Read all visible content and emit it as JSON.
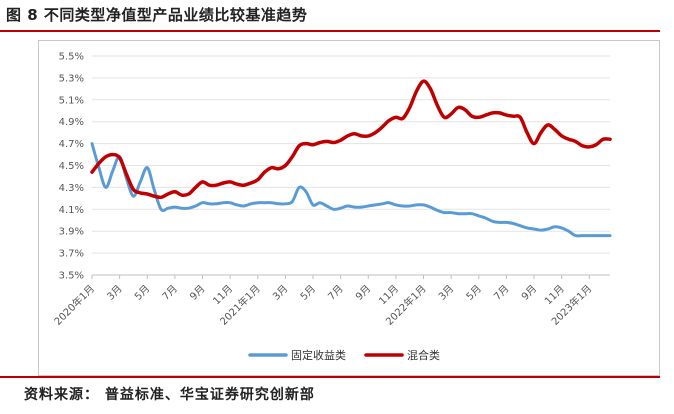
{
  "figure": {
    "title": "图 8 不同类型净值型产品业绩比较基准趋势",
    "source": "资料来源： 普益标准、华宝证券研究创新部"
  },
  "colors": {
    "fixed_income": "#5b9bd5",
    "mixed": "#c00000",
    "rule": "#c00000"
  },
  "chart_data": {
    "type": "line",
    "title": "",
    "xlabel": "",
    "ylabel": "",
    "ylim": [
      3.5,
      5.5
    ],
    "y_ticks": [
      "5.5%",
      "5.3%",
      "5.1%",
      "4.9%",
      "4.7%",
      "4.5%",
      "4.3%",
      "4.1%",
      "3.9%",
      "3.7%",
      "3.5%"
    ],
    "x_tick_labels": [
      "2020年1月",
      "3月",
      "5月",
      "7月",
      "9月",
      "11月",
      "2021年1月",
      "3月",
      "5月",
      "7月",
      "9月",
      "11月",
      "2022年1月",
      "3月",
      "5月",
      "7月",
      "9月",
      "11月",
      "2023年1月"
    ],
    "x_tick_positions": [
      0,
      2,
      4,
      6,
      8,
      10,
      12,
      14,
      16,
      18,
      20,
      22,
      24,
      26,
      28,
      30,
      32,
      34,
      36
    ],
    "legend_position": "bottom",
    "series": [
      {
        "name": "固定收益类",
        "x": [
          0,
          0.5,
          1,
          1.5,
          2,
          2.5,
          3,
          3.5,
          4,
          4.5,
          5,
          5.5,
          6,
          6.5,
          7,
          7.5,
          8,
          8.5,
          9,
          9.5,
          10,
          10.5,
          11,
          11.5,
          12,
          12.5,
          13,
          13.5,
          14,
          14.5,
          15,
          15.5,
          16,
          16.5,
          17,
          17.5,
          18,
          18.5,
          19,
          19.5,
          20,
          20.5,
          21,
          21.5,
          22,
          22.5,
          23,
          23.5,
          24,
          24.5,
          25,
          25.5,
          26,
          26.5,
          27,
          27.5,
          28,
          28.5,
          29,
          29.5,
          30,
          30.5,
          31,
          31.5,
          32,
          32.5,
          33,
          33.5,
          34,
          34.5,
          35,
          35.5,
          36,
          36.5,
          37,
          37.5
        ],
        "values": [
          4.7,
          4.48,
          4.3,
          4.45,
          4.58,
          4.38,
          4.22,
          4.35,
          4.48,
          4.28,
          4.1,
          4.11,
          4.12,
          4.11,
          4.11,
          4.13,
          4.16,
          4.15,
          4.15,
          4.16,
          4.16,
          4.14,
          4.13,
          4.15,
          4.16,
          4.16,
          4.16,
          4.15,
          4.15,
          4.17,
          4.3,
          4.26,
          4.14,
          4.16,
          4.13,
          4.1,
          4.11,
          4.13,
          4.12,
          4.12,
          4.13,
          4.14,
          4.15,
          4.16,
          4.14,
          4.13,
          4.13,
          4.14,
          4.14,
          4.12,
          4.09,
          4.07,
          4.07,
          4.06,
          4.06,
          4.06,
          4.04,
          4.02,
          3.99,
          3.98,
          3.98,
          3.97,
          3.95,
          3.93,
          3.92,
          3.91,
          3.92,
          3.94,
          3.93,
          3.9,
          3.86,
          3.86,
          3.86,
          3.86,
          3.86,
          3.86
        ]
      },
      {
        "name": "混合类",
        "x": [
          0,
          0.5,
          1,
          1.5,
          2,
          2.5,
          3,
          3.5,
          4,
          4.5,
          5,
          5.5,
          6,
          6.5,
          7,
          7.5,
          8,
          8.5,
          9,
          9.5,
          10,
          10.5,
          11,
          11.5,
          12,
          12.5,
          13,
          13.5,
          14,
          14.5,
          15,
          15.5,
          16,
          16.5,
          17,
          17.5,
          18,
          18.5,
          19,
          19.5,
          20,
          20.5,
          21,
          21.5,
          22,
          22.5,
          23,
          23.5,
          24,
          24.5,
          25,
          25.5,
          26,
          26.5,
          27,
          27.5,
          28,
          28.5,
          29,
          29.5,
          30,
          30.5,
          31,
          31.5,
          32,
          32.5,
          33,
          33.5,
          34,
          34.5,
          35,
          35.5,
          36,
          36.5,
          37,
          37.5
        ],
        "values": [
          4.44,
          4.52,
          4.58,
          4.6,
          4.57,
          4.42,
          4.28,
          4.25,
          4.24,
          4.22,
          4.21,
          4.24,
          4.26,
          4.23,
          4.24,
          4.3,
          4.35,
          4.32,
          4.32,
          4.34,
          4.35,
          4.33,
          4.32,
          4.34,
          4.37,
          4.44,
          4.48,
          4.47,
          4.5,
          4.58,
          4.68,
          4.7,
          4.69,
          4.71,
          4.72,
          4.71,
          4.73,
          4.77,
          4.79,
          4.77,
          4.77,
          4.8,
          4.85,
          4.91,
          4.94,
          4.93,
          5.03,
          5.18,
          5.27,
          5.2,
          5.05,
          4.94,
          4.97,
          5.03,
          5.01,
          4.95,
          4.94,
          4.96,
          4.98,
          4.98,
          4.96,
          4.95,
          4.94,
          4.8,
          4.7,
          4.8,
          4.87,
          4.83,
          4.77,
          4.74,
          4.72,
          4.68,
          4.67,
          4.69,
          4.74,
          4.74
        ]
      }
    ]
  }
}
